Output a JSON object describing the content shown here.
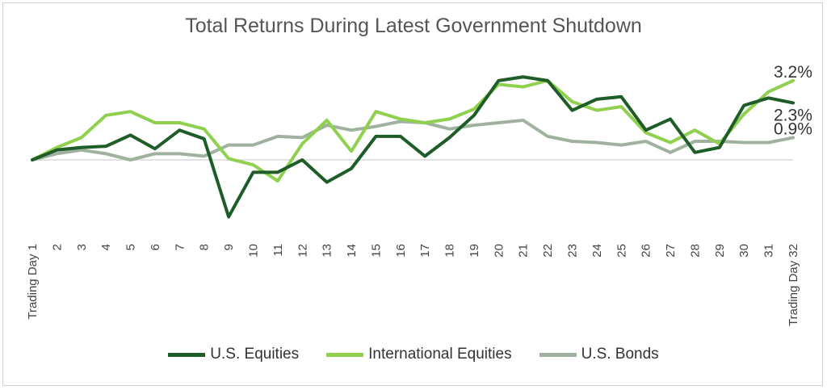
{
  "chart_data": {
    "type": "line",
    "title": "Total Returns During Latest Government Shutdown",
    "xlabel": "",
    "ylabel": "",
    "categories": [
      "Trading Day 1",
      "2",
      "3",
      "4",
      "5",
      "6",
      "7",
      "8",
      "9",
      "10",
      "11",
      "12",
      "13",
      "14",
      "15",
      "16",
      "17",
      "18",
      "19",
      "20",
      "21",
      "22",
      "23",
      "24",
      "25",
      "26",
      "27",
      "28",
      "29",
      "30",
      "31",
      "Trading Day 32"
    ],
    "ylim": [
      -3.0,
      4.5
    ],
    "grid": false,
    "legend_position": "bottom",
    "series": [
      {
        "name": "U.S. Equities",
        "color": "#1e5c28",
        "values": [
          0.0,
          0.4,
          0.5,
          0.55,
          1.0,
          0.45,
          1.2,
          0.85,
          -2.3,
          -0.5,
          -0.5,
          0.0,
          -0.9,
          -0.35,
          0.95,
          0.95,
          0.15,
          0.9,
          1.8,
          3.2,
          3.35,
          3.2,
          2.0,
          2.45,
          2.55,
          1.2,
          1.65,
          0.3,
          0.5,
          2.2,
          2.5,
          2.3
        ],
        "end_label": "2.3%"
      },
      {
        "name": "International Equities",
        "color": "#8fd14f",
        "values": [
          0.0,
          0.5,
          0.9,
          1.8,
          1.95,
          1.5,
          1.5,
          1.25,
          0.05,
          -0.2,
          -0.85,
          0.65,
          1.6,
          0.35,
          1.95,
          1.65,
          1.5,
          1.65,
          2.05,
          3.05,
          2.95,
          3.2,
          2.35,
          2.0,
          2.15,
          1.1,
          0.7,
          1.2,
          0.65,
          1.85,
          2.75,
          3.2
        ],
        "end_label": "3.2%"
      },
      {
        "name": "U.S. Bonds",
        "color": "#a0b1a0",
        "values": [
          0.0,
          0.25,
          0.4,
          0.25,
          0.0,
          0.25,
          0.25,
          0.15,
          0.6,
          0.6,
          0.95,
          0.9,
          1.4,
          1.2,
          1.35,
          1.55,
          1.5,
          1.25,
          1.4,
          1.5,
          1.6,
          0.95,
          0.75,
          0.7,
          0.6,
          0.75,
          0.3,
          0.75,
          0.75,
          0.7,
          0.7,
          0.9
        ],
        "end_label": "0.9%"
      }
    ]
  }
}
